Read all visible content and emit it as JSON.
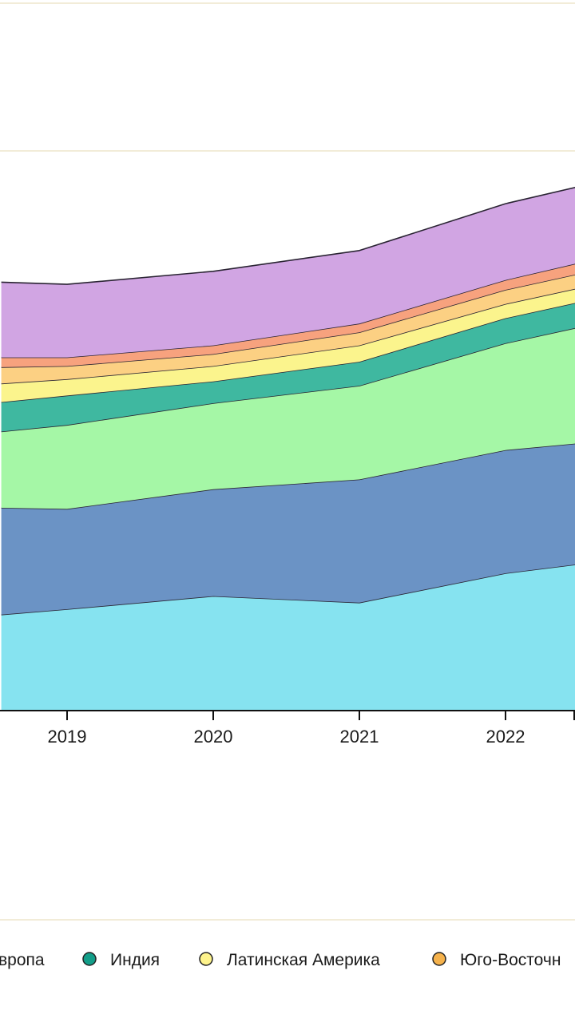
{
  "chart_data": {
    "type": "area",
    "stacked": true,
    "x": [
      2018.55,
      2019,
      2020,
      2021,
      2022,
      2022.48
    ],
    "tick_labels": [
      "2019",
      "2020",
      "2021",
      "2022"
    ],
    "tick_values": [
      2019,
      2020,
      2021,
      2022
    ],
    "series_order_bottom_to_top": [
      "s1",
      "s2",
      "s3",
      "s4",
      "s5",
      "s6",
      "s7",
      "s8"
    ],
    "series": [
      {
        "id": "s1",
        "name": "",
        "color": "#86e3f0",
        "values": [
          88,
          93,
          105,
          99,
          126,
          134
        ]
      },
      {
        "id": "s2",
        "name": "",
        "color": "#6b93c5",
        "values": [
          98,
          92,
          98,
          113,
          113,
          111
        ]
      },
      {
        "id": "s3",
        "name": "Европа",
        "color": "#a5f7a6",
        "values": [
          70,
          77,
          79,
          86,
          98,
          106
        ]
      },
      {
        "id": "s4",
        "name": "Индия",
        "color": "#3fb8a0",
        "values": [
          27,
          27,
          20,
          22,
          23,
          23
        ]
      },
      {
        "id": "s5",
        "name": "Латинская Америка",
        "color": "#fbf48d",
        "values": [
          17,
          15,
          14,
          15,
          13,
          13
        ]
      },
      {
        "id": "s6",
        "name": "Юго-Восточн",
        "color": "#fcd083",
        "values": [
          15,
          12,
          11,
          12,
          13,
          13
        ]
      },
      {
        "id": "s7",
        "name": "",
        "color": "#f7a27e",
        "values": [
          9,
          8,
          8,
          8,
          9,
          10
        ]
      },
      {
        "id": "s8",
        "name": "",
        "color": "#d1a5e3",
        "values": [
          69,
          67,
          68,
          67,
          70,
          70
        ]
      }
    ],
    "ylim": [
      0,
      520
    ],
    "grid": false,
    "legend_position": "bottom"
  },
  "legend": {
    "items": [
      {
        "label": "вропа",
        "color": "#a5f7a6",
        "show_marker": false
      },
      {
        "label": "Индия",
        "color": "#139e89",
        "show_marker": true
      },
      {
        "label": "Латинская Америка",
        "color": "#fef38c",
        "show_marker": true
      },
      {
        "label": "Юго-Восточн",
        "color": "#f5b24c",
        "show_marker": true
      }
    ]
  },
  "colors": {
    "background": "#ffffff",
    "axis": "#111111",
    "outline": "#2a2433",
    "divider": "#f2ecd8"
  }
}
